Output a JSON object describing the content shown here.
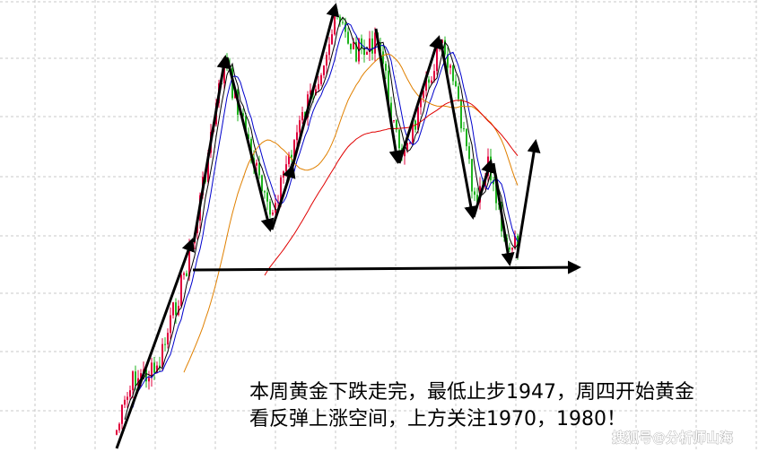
{
  "annotation": {
    "lines": [
      "本周黄金下跌走完，最低止步1947，周四开始黄金",
      "看反弹上涨空间，上方关注1970，1980！"
    ]
  },
  "watermark": "搜狐号@分析师山海"
}
